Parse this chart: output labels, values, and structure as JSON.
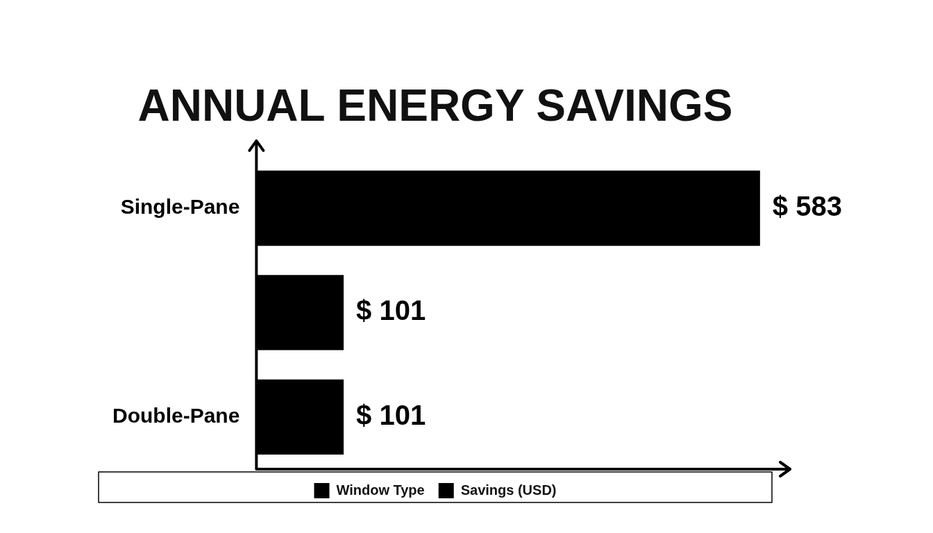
{
  "chart_data": {
    "type": "bar",
    "orientation": "horizontal",
    "title": "ANNUAL ENERGY SAVINGS",
    "categories": [
      "Single-Pane",
      null,
      "Double-Pane"
    ],
    "series": [
      {
        "name": "Window Type",
        "color": "#000000",
        "values": [
          null,
          null,
          null
        ]
      },
      {
        "name": "Savings (USD)",
        "color": "#000000",
        "values": [
          583,
          101,
          101
        ],
        "value_labels": [
          "$ 583",
          "$ 101",
          "$ 101"
        ]
      }
    ],
    "grid": false,
    "legend": "bottom"
  }
}
